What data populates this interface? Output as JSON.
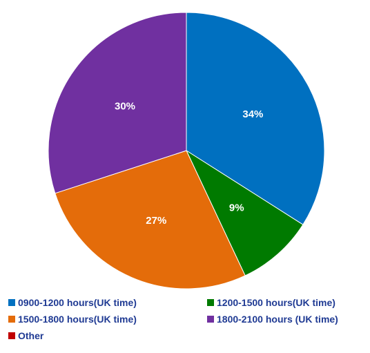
{
  "chart_data": {
    "type": "pie",
    "title": "",
    "slices": [
      {
        "label": "0900-1200 hours(UK time)",
        "value": 34,
        "display": "34%",
        "color": "#0070c0"
      },
      {
        "label": "1200-1500 hours(UK time)",
        "value": 9,
        "display": "9%",
        "color": "#007a00"
      },
      {
        "label": "1500-1800 hours(UK time)",
        "value": 27,
        "display": "27%",
        "color": "#e46c0a"
      },
      {
        "label": "1800-2100 hours (UK time)",
        "value": 30,
        "display": "30%",
        "color": "#7030a0"
      },
      {
        "label": "Other",
        "value": 0,
        "display": "",
        "color": "#c00000"
      }
    ],
    "legend_position": "bottom"
  }
}
